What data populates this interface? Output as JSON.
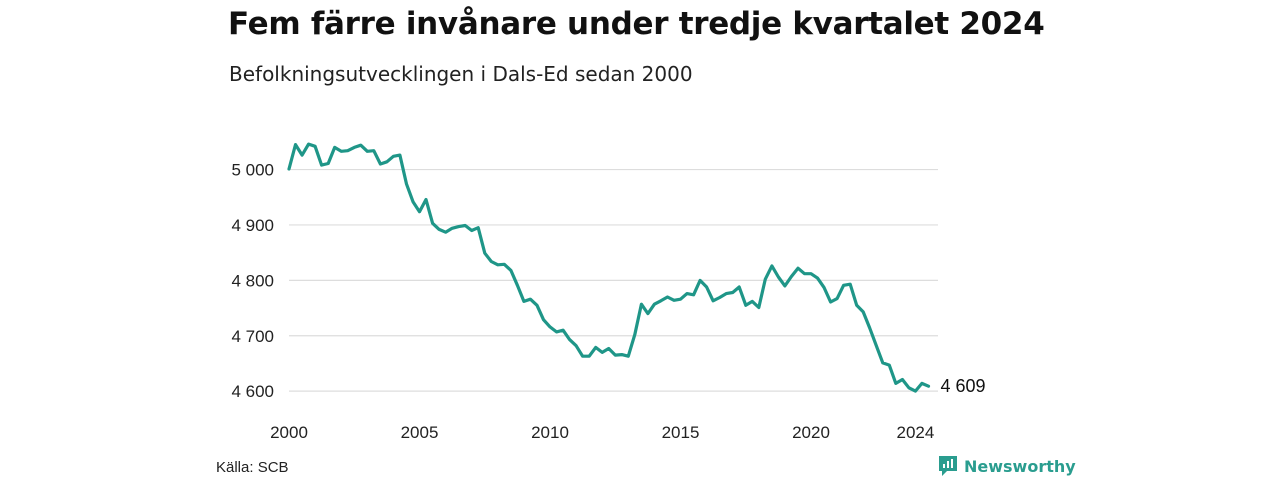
{
  "title": "Fem färre invånare under tredje kvartalet 2024",
  "subtitle": "Befolkningsutvecklingen i Dals-Ed sedan 2000",
  "source": "Källa: SCB",
  "brand": "Newsworthy",
  "colors": {
    "line": "#1f9688",
    "grid": "#dddddd",
    "brand": "#2a9d8f"
  },
  "chart_data": {
    "type": "line",
    "title": "Fem färre invånare under tredje kvartalet 2024",
    "subtitle": "Befolkningsutvecklingen i Dals-Ed sedan 2000",
    "xlabel": "",
    "ylabel": "",
    "x_ticks": [
      2000,
      2005,
      2010,
      2015,
      2020,
      2024
    ],
    "y_ticks": [
      4600,
      4700,
      4800,
      4900,
      5000
    ],
    "y_tick_labels": [
      "4 600",
      "4 700",
      "4 800",
      "4 900",
      "5 000"
    ],
    "xlim": [
      2000,
      2024.75
    ],
    "ylim": [
      4575,
      5075
    ],
    "grid": true,
    "end_label": "4 609",
    "series": [
      {
        "values": [
          {
            "x": 2000.0,
            "y": 5001
          },
          {
            "x": 2000.25,
            "y": 5045
          },
          {
            "x": 2000.5,
            "y": 5026
          },
          {
            "x": 2000.75,
            "y": 5046
          },
          {
            "x": 2001.0,
            "y": 5042
          },
          {
            "x": 2001.25,
            "y": 5008
          },
          {
            "x": 2001.5,
            "y": 5011
          },
          {
            "x": 2001.75,
            "y": 5040
          },
          {
            "x": 2002.0,
            "y": 5033
          },
          {
            "x": 2002.25,
            "y": 5034
          },
          {
            "x": 2002.5,
            "y": 5040
          },
          {
            "x": 2002.75,
            "y": 5044
          },
          {
            "x": 2003.0,
            "y": 5033
          },
          {
            "x": 2003.25,
            "y": 5034
          },
          {
            "x": 2003.5,
            "y": 5010
          },
          {
            "x": 2003.75,
            "y": 5014
          },
          {
            "x": 2004.0,
            "y": 5024
          },
          {
            "x": 2004.25,
            "y": 5026
          },
          {
            "x": 2004.5,
            "y": 4974
          },
          {
            "x": 2004.75,
            "y": 4942
          },
          {
            "x": 2005.0,
            "y": 4924
          },
          {
            "x": 2005.25,
            "y": 4946
          },
          {
            "x": 2005.5,
            "y": 4903
          },
          {
            "x": 2005.75,
            "y": 4892
          },
          {
            "x": 2006.0,
            "y": 4887
          },
          {
            "x": 2006.25,
            "y": 4894
          },
          {
            "x": 2006.5,
            "y": 4897
          },
          {
            "x": 2006.75,
            "y": 4899
          },
          {
            "x": 2007.0,
            "y": 4890
          },
          {
            "x": 2007.25,
            "y": 4895
          },
          {
            "x": 2007.5,
            "y": 4849
          },
          {
            "x": 2007.75,
            "y": 4834
          },
          {
            "x": 2008.0,
            "y": 4828
          },
          {
            "x": 2008.25,
            "y": 4829
          },
          {
            "x": 2008.5,
            "y": 4818
          },
          {
            "x": 2008.75,
            "y": 4791
          },
          {
            "x": 2009.0,
            "y": 4762
          },
          {
            "x": 2009.25,
            "y": 4766
          },
          {
            "x": 2009.5,
            "y": 4755
          },
          {
            "x": 2009.75,
            "y": 4729
          },
          {
            "x": 2010.0,
            "y": 4716
          },
          {
            "x": 2010.25,
            "y": 4707
          },
          {
            "x": 2010.5,
            "y": 4710
          },
          {
            "x": 2010.75,
            "y": 4693
          },
          {
            "x": 2011.0,
            "y": 4682
          },
          {
            "x": 2011.25,
            "y": 4663
          },
          {
            "x": 2011.5,
            "y": 4663
          },
          {
            "x": 2011.75,
            "y": 4679
          },
          {
            "x": 2012.0,
            "y": 4670
          },
          {
            "x": 2012.25,
            "y": 4677
          },
          {
            "x": 2012.5,
            "y": 4665
          },
          {
            "x": 2012.75,
            "y": 4666
          },
          {
            "x": 2013.0,
            "y": 4663
          },
          {
            "x": 2013.25,
            "y": 4702
          },
          {
            "x": 2013.5,
            "y": 4757
          },
          {
            "x": 2013.75,
            "y": 4740
          },
          {
            "x": 2014.0,
            "y": 4757
          },
          {
            "x": 2014.25,
            "y": 4763
          },
          {
            "x": 2014.5,
            "y": 4770
          },
          {
            "x": 2014.75,
            "y": 4764
          },
          {
            "x": 2015.0,
            "y": 4766
          },
          {
            "x": 2015.25,
            "y": 4776
          },
          {
            "x": 2015.5,
            "y": 4774
          },
          {
            "x": 2015.75,
            "y": 4800
          },
          {
            "x": 2016.0,
            "y": 4788
          },
          {
            "x": 2016.25,
            "y": 4763
          },
          {
            "x": 2016.5,
            "y": 4769
          },
          {
            "x": 2016.75,
            "y": 4776
          },
          {
            "x": 2017.0,
            "y": 4778
          },
          {
            "x": 2017.25,
            "y": 4788
          },
          {
            "x": 2017.5,
            "y": 4755
          },
          {
            "x": 2017.75,
            "y": 4762
          },
          {
            "x": 2018.0,
            "y": 4751
          },
          {
            "x": 2018.25,
            "y": 4802
          },
          {
            "x": 2018.5,
            "y": 4826
          },
          {
            "x": 2018.75,
            "y": 4806
          },
          {
            "x": 2019.0,
            "y": 4790
          },
          {
            "x": 2019.25,
            "y": 4807
          },
          {
            "x": 2019.5,
            "y": 4822
          },
          {
            "x": 2019.75,
            "y": 4812
          },
          {
            "x": 2020.0,
            "y": 4812
          },
          {
            "x": 2020.25,
            "y": 4804
          },
          {
            "x": 2020.5,
            "y": 4787
          },
          {
            "x": 2020.75,
            "y": 4761
          },
          {
            "x": 2021.0,
            "y": 4767
          },
          {
            "x": 2021.25,
            "y": 4791
          },
          {
            "x": 2021.5,
            "y": 4793
          },
          {
            "x": 2021.75,
            "y": 4755
          },
          {
            "x": 2022.0,
            "y": 4743
          },
          {
            "x": 2022.25,
            "y": 4714
          },
          {
            "x": 2022.5,
            "y": 4682
          },
          {
            "x": 2022.75,
            "y": 4651
          },
          {
            "x": 2023.0,
            "y": 4647
          },
          {
            "x": 2023.25,
            "y": 4614
          },
          {
            "x": 2023.5,
            "y": 4621
          },
          {
            "x": 2023.75,
            "y": 4606
          },
          {
            "x": 2024.0,
            "y": 4600
          },
          {
            "x": 2024.25,
            "y": 4614
          },
          {
            "x": 2024.5,
            "y": 4609
          }
        ]
      }
    ]
  }
}
